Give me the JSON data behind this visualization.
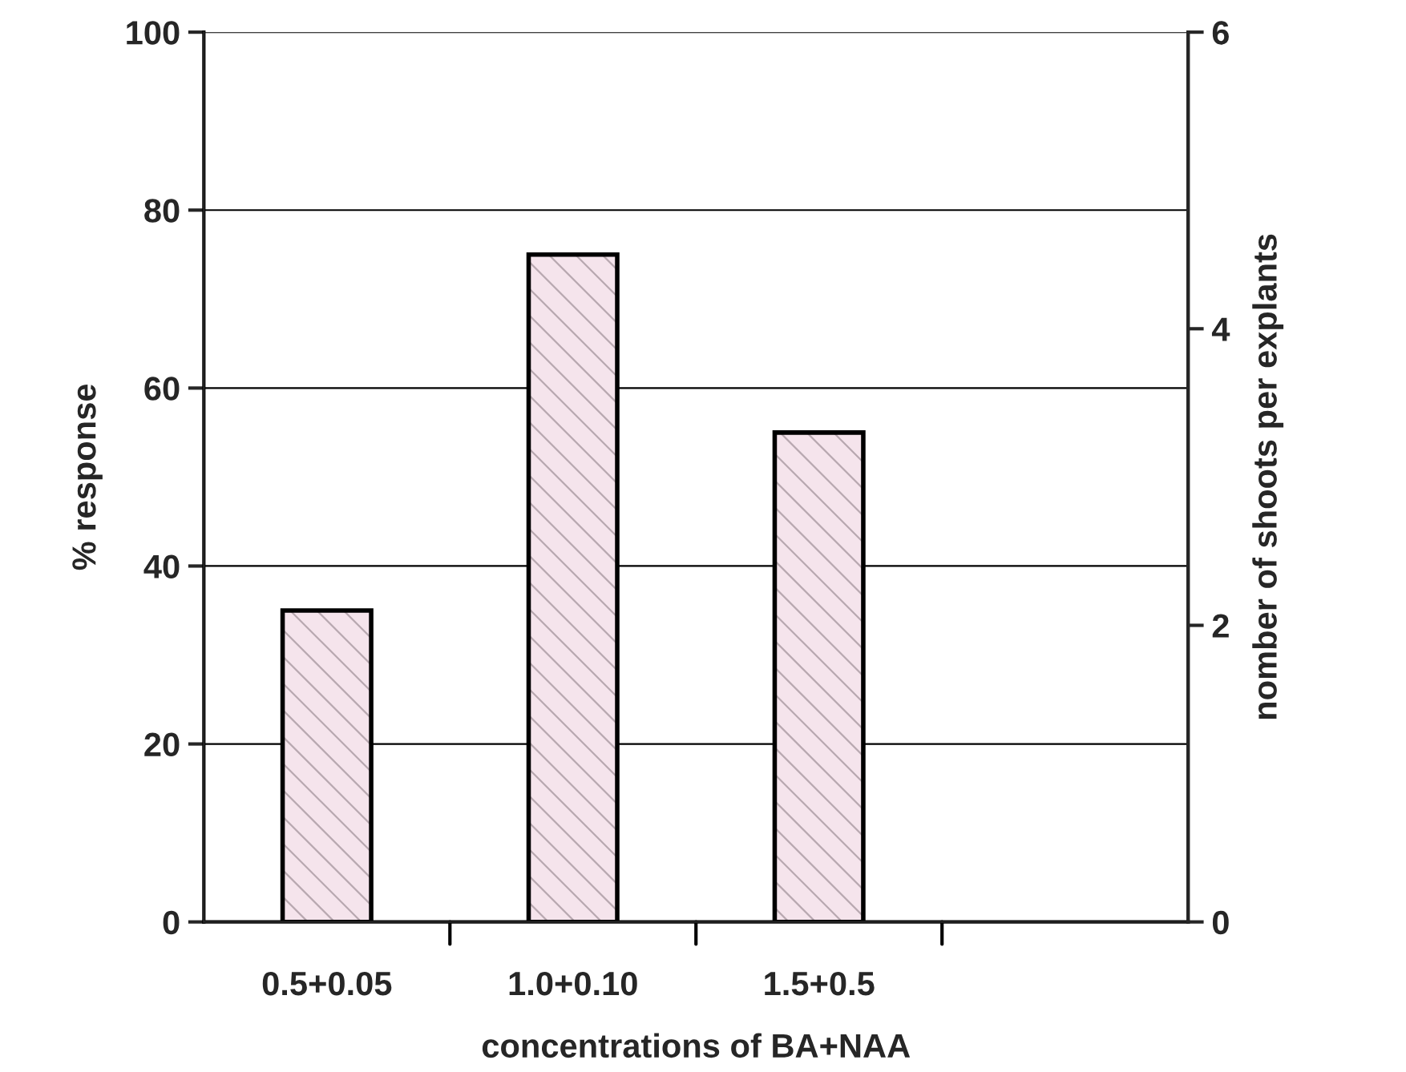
{
  "chart_data": {
    "type": "bar",
    "xlabel": "concentrations of BA+NAA",
    "ylabel": "% response",
    "y2label": "nomber of shoots per explants",
    "categories": [
      "0.5+0.05",
      "1.0+0.10",
      "1.5+0.5",
      null
    ],
    "series": [
      {
        "color": "#f5e4ec",
        "values": [
          35,
          75,
          55,
          null
        ]
      }
    ],
    "ylim": [
      0,
      100
    ],
    "yticks": [
      0,
      20,
      40,
      60,
      80,
      100
    ],
    "y2lim": [
      0,
      6
    ],
    "y2ticks": [
      0,
      2,
      4,
      6
    ],
    "grid": "y",
    "legend": false
  }
}
